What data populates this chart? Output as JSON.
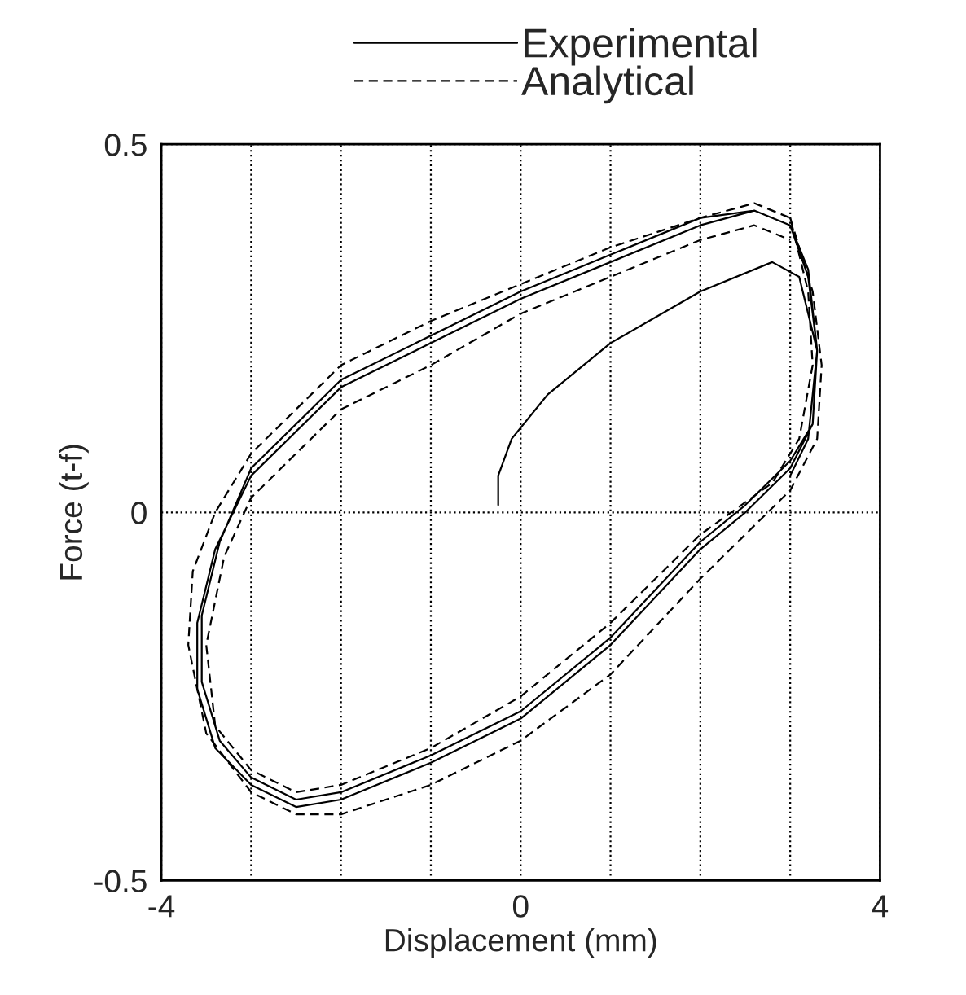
{
  "chart_data": {
    "type": "line",
    "xlabel": "Displacement (mm)",
    "ylabel": "Force (t-f)",
    "xlim": [
      -4,
      4
    ],
    "ylim": [
      -0.5,
      0.5
    ],
    "xticks": [
      -4,
      {
        "value": -3,
        "label": null
      },
      {
        "value": -2,
        "label": null
      },
      {
        "value": -1,
        "label": null
      },
      0,
      {
        "value": 1,
        "label": null
      },
      {
        "value": 2,
        "label": null
      },
      {
        "value": 3,
        "label": null
      },
      4
    ],
    "yticks": [
      -0.5,
      0,
      0.5
    ],
    "grid": true,
    "legend": "top",
    "marker": "none",
    "series": [
      {
        "name": "Experimental",
        "color": "#000000",
        "line_style": "solid",
        "x": [
          -0.25,
          -0.25,
          -0.1,
          0.3,
          1.0,
          2.0,
          2.8,
          3.1,
          3.3,
          3.25,
          3.0,
          2.5,
          2.0,
          1.0,
          0.0,
          -1.0,
          -2.0,
          -2.5,
          -3.0,
          -3.4,
          -3.6,
          -3.6,
          -3.4,
          -3.0,
          -2.0,
          -1.0,
          0.0,
          1.0,
          2.0,
          2.6,
          3.0,
          3.2,
          3.3,
          3.25,
          3.0,
          2.5,
          2.0,
          1.0,
          0.0,
          -1.0,
          -2.0,
          -2.5,
          -3.0,
          -3.35,
          -3.55,
          -3.55,
          -3.35,
          -3.0,
          -2.0,
          -1.0,
          0.0,
          1.0,
          2.0,
          2.6,
          3.0,
          3.2,
          3.3,
          3.2,
          3.0
        ],
        "values": [
          0.01,
          0.05,
          0.1,
          0.16,
          0.23,
          0.3,
          0.34,
          0.32,
          0.22,
          0.12,
          0.06,
          0.0,
          -0.05,
          -0.18,
          -0.28,
          -0.34,
          -0.39,
          -0.4,
          -0.37,
          -0.32,
          -0.24,
          -0.15,
          -0.05,
          0.05,
          0.17,
          0.23,
          0.29,
          0.34,
          0.39,
          0.41,
          0.39,
          0.33,
          0.22,
          0.12,
          0.07,
          0.01,
          -0.04,
          -0.17,
          -0.27,
          -0.33,
          -0.38,
          -0.39,
          -0.36,
          -0.31,
          -0.23,
          -0.14,
          -0.04,
          0.06,
          0.18,
          0.24,
          0.3,
          0.35,
          0.4,
          0.41,
          0.39,
          0.32,
          0.22,
          0.1,
          0.05
        ]
      },
      {
        "name": "Analytical",
        "color": "#000000",
        "line_style": "dashed",
        "x": [
          3.0,
          3.25,
          3.35,
          3.3,
          3.0,
          2.0,
          1.0,
          0.0,
          -1.0,
          -2.0,
          -2.5,
          -3.0,
          -3.5,
          -3.7,
          -3.65,
          -3.4,
          -3.0,
          -2.0,
          -1.0,
          0.0,
          1.0,
          2.0,
          2.6,
          3.0,
          3.2,
          3.25,
          3.1,
          2.8,
          2.0,
          1.0,
          0.0,
          -1.0,
          -2.0,
          -2.5,
          -3.0,
          -3.4,
          -3.5,
          -3.3,
          -3.0,
          -2.0,
          -1.0,
          0.0,
          1.0,
          2.0,
          2.6,
          3.0
        ],
        "values": [
          0.4,
          0.3,
          0.2,
          0.1,
          0.03,
          -0.09,
          -0.22,
          -0.31,
          -0.37,
          -0.41,
          -0.41,
          -0.38,
          -0.3,
          -0.18,
          -0.08,
          0.0,
          0.08,
          0.2,
          0.26,
          0.31,
          0.36,
          0.4,
          0.42,
          0.4,
          0.3,
          0.2,
          0.1,
          0.04,
          -0.03,
          -0.15,
          -0.25,
          -0.32,
          -0.37,
          -0.38,
          -0.35,
          -0.29,
          -0.18,
          -0.06,
          0.02,
          0.14,
          0.2,
          0.27,
          0.32,
          0.37,
          0.39,
          0.37
        ]
      }
    ]
  }
}
